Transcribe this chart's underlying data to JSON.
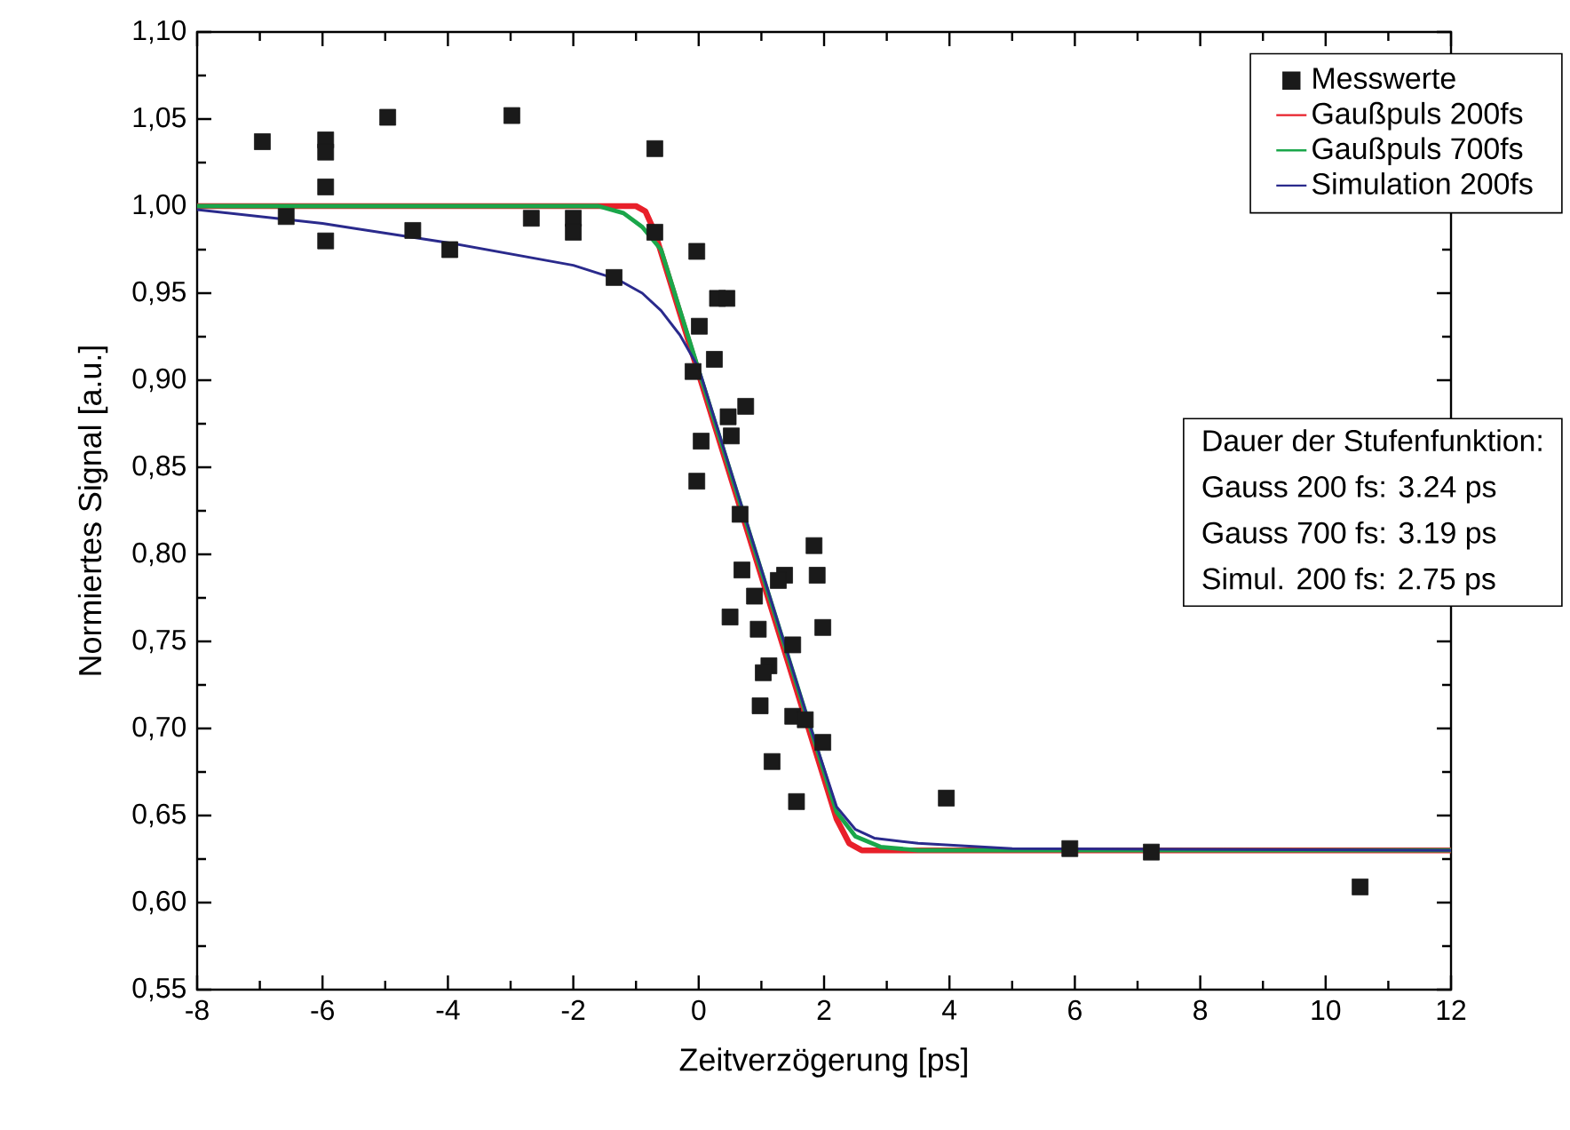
{
  "chart_data": {
    "type": "scatter",
    "xlabel": "Zeitverzögerung [ps]",
    "ylabel": "Normiertes Signal [a.u.]",
    "xlim": [
      -8,
      12
    ],
    "ylim": [
      0.55,
      1.1
    ],
    "xticks": [
      -8,
      -6,
      -4,
      -2,
      0,
      2,
      4,
      6,
      8,
      10,
      12
    ],
    "yticks": [
      {
        "value": 0.55,
        "label": "0,55"
      },
      {
        "value": 0.6,
        "label": "0,60"
      },
      {
        "value": 0.65,
        "label": "0,65"
      },
      {
        "value": 0.7,
        "label": "0,70"
      },
      {
        "value": 0.75,
        "label": "0,75"
      },
      {
        "value": 0.8,
        "label": "0,80"
      },
      {
        "value": 0.85,
        "label": "0,85"
      },
      {
        "value": 0.9,
        "label": "0,90"
      },
      {
        "value": 0.95,
        "label": "0,95"
      },
      {
        "value": 1.0,
        "label": "1,00"
      },
      {
        "value": 1.05,
        "label": "1,05"
      },
      {
        "value": 1.1,
        "label": "1,10"
      }
    ],
    "legend": "top right",
    "line_style": "solid",
    "annotations": [
      "Dauer der Stufenfunktion:",
      "Gauss 200 fs: 3.24 ps",
      "Gauss 700 fs: 3.19 ps",
      "Simul.  200 fs: 2.75 ps"
    ],
    "series": [
      {
        "name": "Messwerte",
        "type": "scatter",
        "marker": "square",
        "color": "#1a1a1a",
        "x": [
          -6.96,
          -6.58,
          -5.95,
          -5.95,
          -5.95,
          -5.95,
          -4.96,
          -4.56,
          -3.97,
          -2.98,
          -2.67,
          -2.0,
          -2.0,
          -1.35,
          -0.7,
          -0.7,
          -0.03,
          0.01,
          -0.09,
          0.04,
          -0.03,
          0.3,
          0.45,
          0.25,
          0.75,
          0.47,
          0.52,
          0.66,
          1.84,
          1.89,
          0.69,
          1.37,
          1.27,
          0.89,
          0.5,
          0.95,
          1.98,
          1.5,
          1.12,
          1.03,
          0.98,
          1.5,
          1.7,
          1.98,
          1.17,
          1.56,
          3.95,
          5.92,
          7.22,
          10.55
        ],
        "values": [
          1.037,
          0.994,
          1.038,
          1.031,
          1.011,
          0.98,
          1.051,
          0.986,
          0.975,
          1.052,
          0.993,
          0.993,
          0.985,
          0.959,
          1.033,
          0.985,
          0.974,
          0.931,
          0.905,
          0.865,
          0.842,
          0.947,
          0.947,
          0.912,
          0.885,
          0.879,
          0.868,
          0.823,
          0.805,
          0.788,
          0.791,
          0.788,
          0.785,
          0.776,
          0.764,
          0.757,
          0.758,
          0.748,
          0.736,
          0.732,
          0.713,
          0.707,
          0.705,
          0.692,
          0.681,
          0.658,
          0.66,
          0.631,
          0.629,
          0.609
        ]
      },
      {
        "name": "Gaußpuls 200fs",
        "type": "line",
        "marker": "none",
        "color": "#e8202a",
        "x": [
          -8,
          -1.0,
          -0.85,
          -0.7,
          2.2,
          2.4,
          2.6,
          12
        ],
        "values": [
          1.0,
          1.0,
          0.997,
          0.985,
          0.648,
          0.634,
          0.63,
          0.63
        ]
      },
      {
        "name": "Gaußpuls 700fs",
        "type": "line",
        "marker": "none",
        "color": "#1aa64a",
        "x": [
          -8,
          -1.6,
          -1.2,
          -0.9,
          -0.6,
          2.2,
          2.5,
          2.9,
          3.5,
          4.5,
          12
        ],
        "values": [
          1.0,
          1.0,
          0.996,
          0.988,
          0.975,
          0.652,
          0.638,
          0.632,
          0.63,
          0.63,
          0.63
        ]
      },
      {
        "name": "Simulation 200fs",
        "type": "line",
        "marker": "none",
        "color": "#2a2a8c",
        "x": [
          -8,
          -6,
          -4,
          -2,
          -1.3,
          -0.9,
          -0.6,
          -0.3,
          0,
          1.8,
          2.2,
          2.5,
          2.8,
          3.5,
          5,
          12
        ],
        "values": [
          0.998,
          0.99,
          0.979,
          0.966,
          0.958,
          0.95,
          0.94,
          0.926,
          0.907,
          0.699,
          0.655,
          0.642,
          0.637,
          0.634,
          0.631,
          0.63
        ]
      }
    ]
  }
}
